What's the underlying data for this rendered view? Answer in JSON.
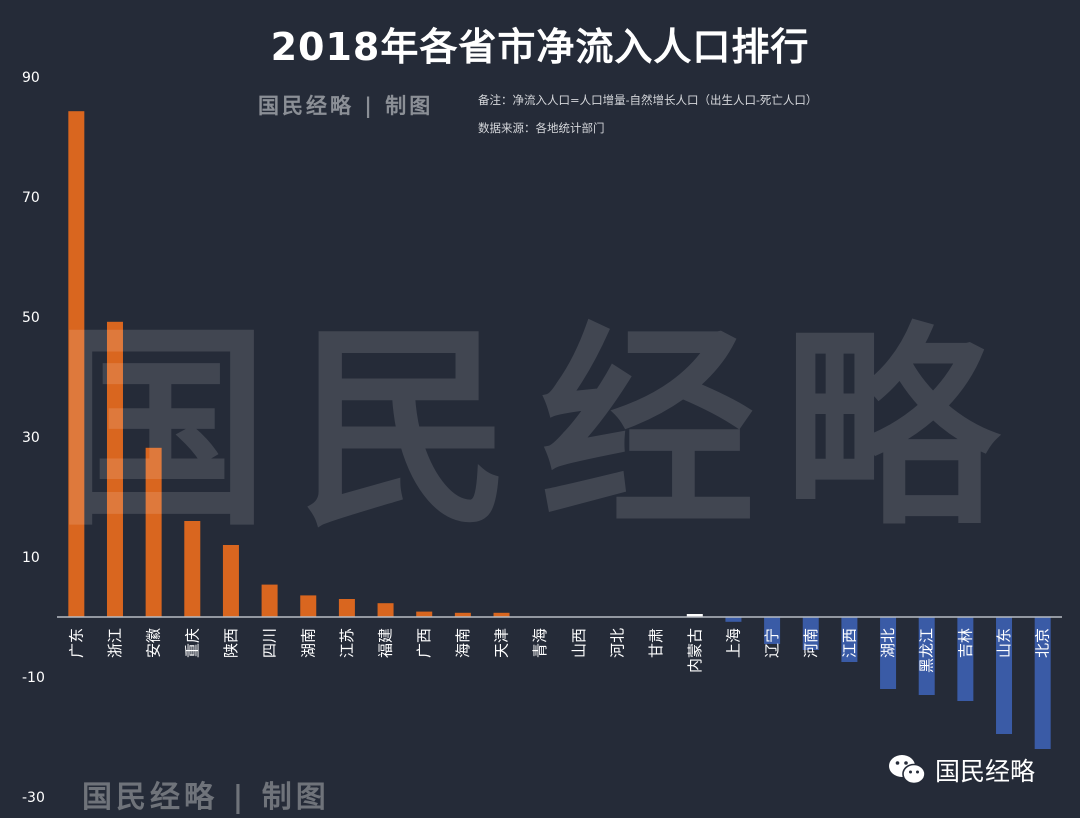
{
  "header": {
    "title": "2018年各省市净流入人口排行",
    "brand": "国民经略 | 制图",
    "note_formula": "备注：净流入人口=人口增量-自然增长人口（出生人口-死亡人口）",
    "note_source": "数据来源：各地统计部门"
  },
  "watermark": {
    "text": "国民经略"
  },
  "footer": {
    "brand": "国民经略 | 制图",
    "account_name": "国民经略",
    "icon": "wechat-icon"
  },
  "colors": {
    "background": "#252b38",
    "positive": "#d9661f",
    "negative": "#3a5ba6",
    "zero_bar": "#ffffff",
    "axis": "#b8bcc4"
  },
  "chart_data": {
    "type": "bar",
    "categories": [
      "广东",
      "浙江",
      "安徽",
      "重庆",
      "陕西",
      "四川",
      "湖南",
      "江苏",
      "福建",
      "广西",
      "海南",
      "天津",
      "青海",
      "山西",
      "河北",
      "甘肃",
      "内蒙古",
      "上海",
      "辽宁",
      "河南",
      "江西",
      "湖北",
      "黑龙江",
      "吉林",
      "山东",
      "北京"
    ],
    "values": [
      84.3,
      49.2,
      28.2,
      16.0,
      12.0,
      5.4,
      3.6,
      3.0,
      2.3,
      0.9,
      0.7,
      0.7,
      0.0,
      0.0,
      0.0,
      0.0,
      0.5,
      -0.8,
      -4.5,
      -5.5,
      -7.5,
      -12.0,
      -13.0,
      -14.0,
      -19.5,
      -22.0
    ],
    "yticks": [
      90,
      70,
      50,
      30,
      10,
      -10,
      -30
    ],
    "ylim": [
      -30,
      90
    ],
    "title": "2018年各省市净流入人口排行",
    "xlabel": "",
    "ylabel": "",
    "grid": false,
    "legend": "none"
  }
}
